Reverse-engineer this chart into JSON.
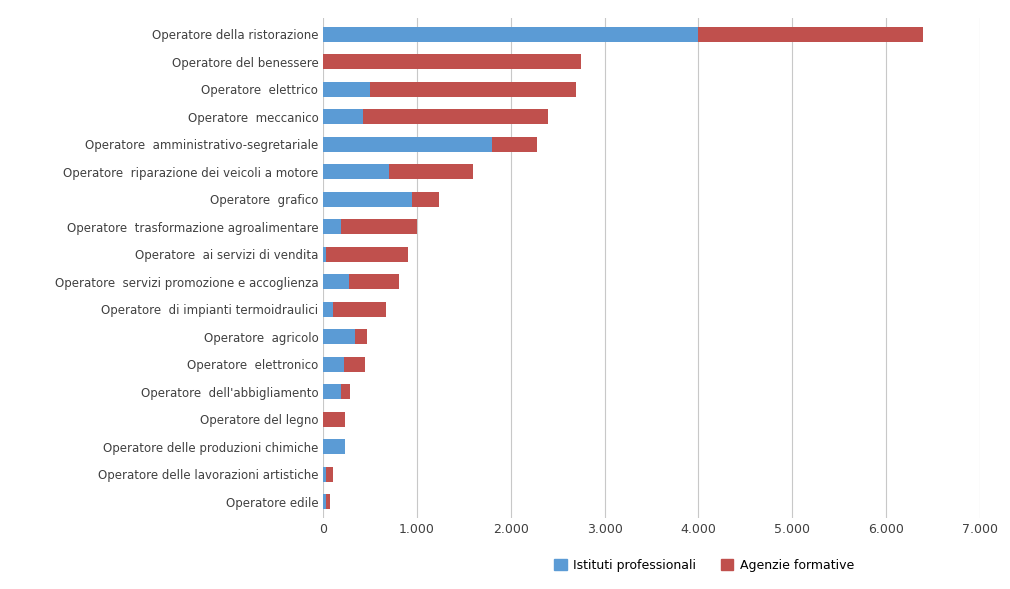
{
  "categories": [
    "Operatore della ristorazione",
    "Operatore del benessere",
    "Operatore  elettrico",
    "Operatore  meccanico",
    "Operatore  amministrativo-segretariale",
    "Operatore  riparazione dei veicoli a motore",
    "Operatore  grafico",
    "Operatore  trasformazione agroalimentare",
    "Operatore  ai servizi di vendita",
    "Operatore  servizi promozione e accoglienza",
    "Operatore  di impianti termoidraulici",
    "Operatore  agricolo",
    "Operatore  elettronico",
    "Operatore  dell'abbigliamento",
    "Operatore del legno",
    "Operatore delle produzioni chimiche",
    "Operatore delle lavorazioni artistiche",
    "Operatore edile"
  ],
  "istituti": [
    4000,
    0,
    500,
    420,
    1800,
    700,
    950,
    190,
    30,
    280,
    100,
    340,
    220,
    185,
    0,
    230,
    25,
    25
  ],
  "agenzie": [
    2400,
    2750,
    2200,
    1980,
    480,
    900,
    290,
    810,
    870,
    530,
    570,
    130,
    230,
    100,
    230,
    0,
    80,
    45
  ],
  "color_istituti": "#5B9BD5",
  "color_agenzie": "#C0504D",
  "background_color": "#FFFFFF",
  "xlim": [
    0,
    7000
  ],
  "xticks": [
    0,
    1000,
    2000,
    3000,
    4000,
    5000,
    6000,
    7000
  ],
  "xtick_labels": [
    "0",
    "1.000",
    "2.000",
    "3.000",
    "4.000",
    "5.000",
    "6.000",
    "7.000"
  ],
  "legend_istituti": "Istituti professionali",
  "legend_agenzie": "Agenzie formative",
  "grid_color": "#C8C8C8",
  "title_fontsize": 9,
  "label_fontsize": 8.5,
  "tick_fontsize": 9
}
